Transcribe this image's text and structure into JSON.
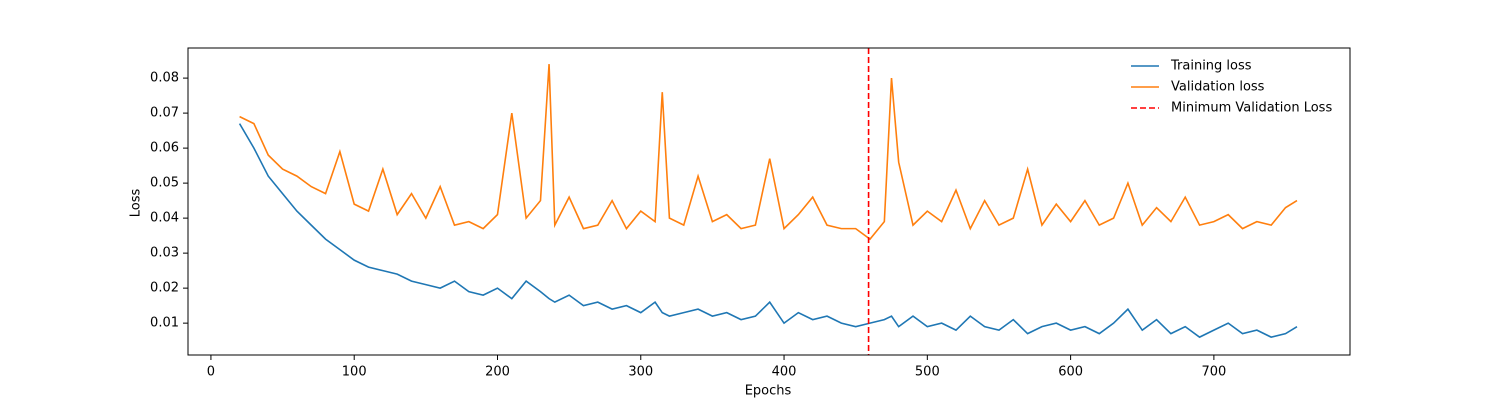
{
  "chart_data": {
    "type": "line",
    "xlabel": "Epochs",
    "ylabel": "Loss",
    "x": [
      20,
      30,
      40,
      50,
      60,
      70,
      80,
      90,
      100,
      110,
      120,
      130,
      140,
      150,
      160,
      170,
      180,
      190,
      200,
      210,
      220,
      230,
      236,
      240,
      250,
      260,
      270,
      280,
      290,
      300,
      310,
      315,
      320,
      330,
      340,
      350,
      360,
      370,
      380,
      390,
      400,
      410,
      420,
      430,
      440,
      450,
      460,
      470,
      475,
      480,
      490,
      500,
      510,
      520,
      530,
      540,
      550,
      560,
      570,
      580,
      590,
      600,
      610,
      620,
      630,
      640,
      650,
      660,
      670,
      680,
      690,
      700,
      710,
      720,
      730,
      740,
      750,
      758
    ],
    "series": [
      {
        "name": "Training loss",
        "color": "#1f77b4",
        "values": [
          0.067,
          0.06,
          0.052,
          0.047,
          0.042,
          0.038,
          0.034,
          0.031,
          0.028,
          0.026,
          0.025,
          0.024,
          0.022,
          0.021,
          0.02,
          0.022,
          0.019,
          0.018,
          0.02,
          0.017,
          0.022,
          0.019,
          0.017,
          0.016,
          0.018,
          0.015,
          0.016,
          0.014,
          0.015,
          0.013,
          0.016,
          0.013,
          0.012,
          0.013,
          0.014,
          0.012,
          0.013,
          0.011,
          0.012,
          0.016,
          0.01,
          0.013,
          0.011,
          0.012,
          0.01,
          0.009,
          0.01,
          0.011,
          0.012,
          0.009,
          0.012,
          0.009,
          0.01,
          0.008,
          0.012,
          0.009,
          0.008,
          0.011,
          0.007,
          0.009,
          0.01,
          0.008,
          0.009,
          0.007,
          0.01,
          0.014,
          0.008,
          0.011,
          0.007,
          0.009,
          0.006,
          0.008,
          0.01,
          0.007,
          0.008,
          0.006,
          0.007,
          0.009
        ]
      },
      {
        "name": "Validation loss",
        "color": "#ff7f0e",
        "values": [
          0.069,
          0.067,
          0.058,
          0.054,
          0.052,
          0.049,
          0.047,
          0.059,
          0.044,
          0.042,
          0.054,
          0.041,
          0.047,
          0.04,
          0.049,
          0.038,
          0.039,
          0.037,
          0.041,
          0.07,
          0.04,
          0.045,
          0.084,
          0.038,
          0.046,
          0.037,
          0.038,
          0.045,
          0.037,
          0.042,
          0.039,
          0.076,
          0.04,
          0.038,
          0.052,
          0.039,
          0.041,
          0.037,
          0.038,
          0.057,
          0.037,
          0.041,
          0.046,
          0.038,
          0.037,
          0.037,
          0.034,
          0.039,
          0.08,
          0.056,
          0.038,
          0.042,
          0.039,
          0.048,
          0.037,
          0.045,
          0.038,
          0.04,
          0.054,
          0.038,
          0.044,
          0.039,
          0.045,
          0.038,
          0.04,
          0.05,
          0.038,
          0.043,
          0.039,
          0.046,
          0.038,
          0.039,
          0.041,
          0.037,
          0.039,
          0.038,
          0.043,
          0.045
        ]
      }
    ],
    "vline": {
      "x": 459,
      "name": "Minimum Validation Loss",
      "color": "red"
    },
    "xlim": [
      -16,
      795
    ],
    "xticks": [
      0,
      100,
      200,
      300,
      400,
      500,
      600,
      700
    ],
    "ylim": [
      0.0009,
      0.0886
    ],
    "yticks": [
      0.01,
      0.02,
      0.03,
      0.04,
      0.05,
      0.06,
      0.07,
      0.08
    ],
    "legend": "upper right"
  }
}
